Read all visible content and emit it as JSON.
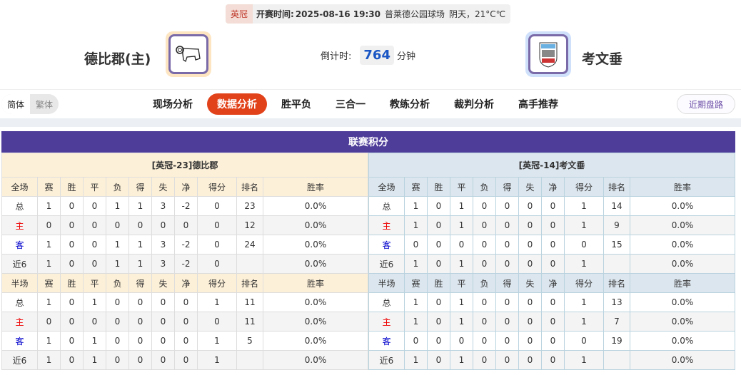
{
  "match_info": {
    "league": "英冠",
    "time_label": "开赛时间:",
    "time": "2025-08-16 19:30",
    "venue": "普莱德公园球场",
    "weather": "阴天，21°C℃"
  },
  "home": {
    "name": "德比郡(主)",
    "logo": "ram-crest-icon"
  },
  "away": {
    "name": "考文垂",
    "logo": "elephant-crest-icon"
  },
  "countdown": {
    "label": "倒计时:",
    "value": "764",
    "unit": "分钟"
  },
  "lang": {
    "simplified": "简体",
    "traditional": "繁体"
  },
  "nav": [
    "现场分析",
    "数据分析",
    "胜平负",
    "三合一",
    "教练分析",
    "裁判分析",
    "高手推荐"
  ],
  "nav_active": 1,
  "recent_button": "近期盘路",
  "standings": {
    "title": "联赛积分",
    "columns_full": [
      "全场",
      "赛",
      "胜",
      "平",
      "负",
      "得",
      "失",
      "净",
      "得分",
      "排名",
      "胜率"
    ],
    "columns_half": [
      "半场",
      "赛",
      "胜",
      "平",
      "负",
      "得",
      "失",
      "净",
      "得分",
      "排名",
      "胜率"
    ],
    "home": {
      "header": "[英冠-23]德比郡",
      "full": [
        [
          "总",
          "1",
          "0",
          "0",
          "1",
          "1",
          "3",
          "-2",
          "0",
          "23",
          "0.0%"
        ],
        [
          "主",
          "0",
          "0",
          "0",
          "0",
          "0",
          "0",
          "0",
          "0",
          "12",
          "0.0%"
        ],
        [
          "客",
          "1",
          "0",
          "0",
          "1",
          "1",
          "3",
          "-2",
          "0",
          "24",
          "0.0%"
        ],
        [
          "近6",
          "1",
          "0",
          "0",
          "1",
          "1",
          "3",
          "-2",
          "0",
          "",
          "0.0%"
        ]
      ],
      "half": [
        [
          "总",
          "1",
          "0",
          "1",
          "0",
          "0",
          "0",
          "0",
          "1",
          "11",
          "0.0%"
        ],
        [
          "主",
          "0",
          "0",
          "0",
          "0",
          "0",
          "0",
          "0",
          "0",
          "11",
          "0.0%"
        ],
        [
          "客",
          "1",
          "0",
          "1",
          "0",
          "0",
          "0",
          "0",
          "1",
          "5",
          "0.0%"
        ],
        [
          "近6",
          "1",
          "0",
          "1",
          "0",
          "0",
          "0",
          "0",
          "1",
          "",
          "0.0%"
        ]
      ]
    },
    "away": {
      "header": "[英冠-14]考文垂",
      "full": [
        [
          "总",
          "1",
          "0",
          "1",
          "0",
          "0",
          "0",
          "0",
          "1",
          "14",
          "0.0%"
        ],
        [
          "主",
          "1",
          "0",
          "1",
          "0",
          "0",
          "0",
          "0",
          "1",
          "9",
          "0.0%"
        ],
        [
          "客",
          "0",
          "0",
          "0",
          "0",
          "0",
          "0",
          "0",
          "0",
          "15",
          "0.0%"
        ],
        [
          "近6",
          "1",
          "0",
          "1",
          "0",
          "0",
          "0",
          "0",
          "1",
          "",
          "0.0%"
        ]
      ],
      "half": [
        [
          "总",
          "1",
          "0",
          "1",
          "0",
          "0",
          "0",
          "0",
          "1",
          "13",
          "0.0%"
        ],
        [
          "主",
          "1",
          "0",
          "1",
          "0",
          "0",
          "0",
          "0",
          "1",
          "7",
          "0.0%"
        ],
        [
          "客",
          "0",
          "0",
          "0",
          "0",
          "0",
          "0",
          "0",
          "0",
          "19",
          "0.0%"
        ],
        [
          "近6",
          "1",
          "0",
          "1",
          "0",
          "0",
          "0",
          "0",
          "1",
          "",
          "0.0%"
        ]
      ]
    }
  },
  "colors": {
    "accent": "#e2421a",
    "title_bar": "#4f3d9a",
    "home_red": "#e00000",
    "away_blue": "#0000cc"
  }
}
